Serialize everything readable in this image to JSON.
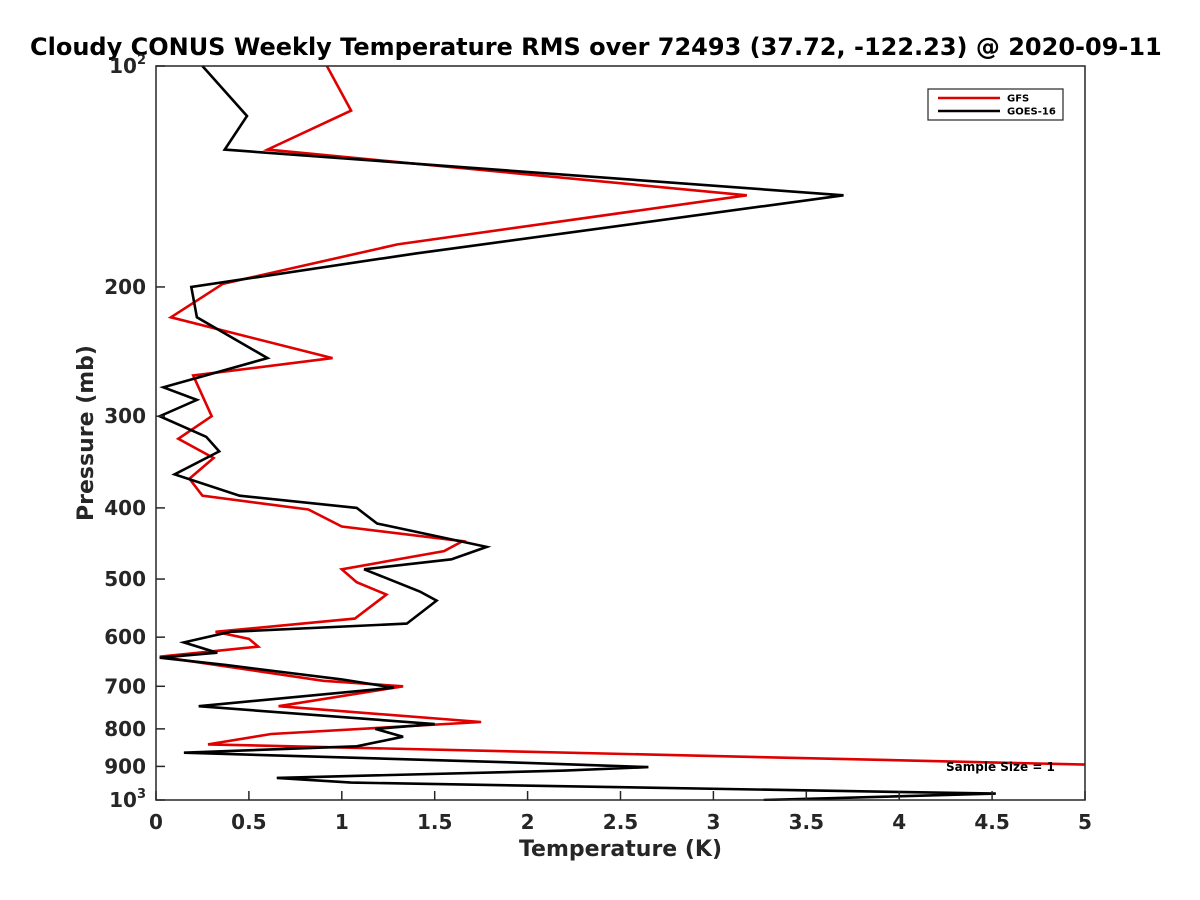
{
  "chart_data": {
    "type": "line",
    "title": "Cloudy CONUS Weekly Temperature RMS over 72493 (37.72, -122.23) @ 2020-09-11",
    "xlabel": "Temperature (K)",
    "ylabel": "Pressure (mb)",
    "xlim": [
      0,
      5
    ],
    "ylim": [
      100,
      1000
    ],
    "yscale": "log",
    "y_reversed": true,
    "grid": false,
    "legend_position": "top-right",
    "x_ticks": [
      "0",
      "0.5",
      "1",
      "1.5",
      "2",
      "2.5",
      "3",
      "3.5",
      "4",
      "4.5",
      "5"
    ],
    "y_ticks": [
      {
        "value": 100,
        "base": "10",
        "exp": "2"
      },
      {
        "value": 200,
        "label": "200"
      },
      {
        "value": 300,
        "label": "300"
      },
      {
        "value": 400,
        "label": "400"
      },
      {
        "value": 500,
        "label": "500"
      },
      {
        "value": 600,
        "label": "600"
      },
      {
        "value": 700,
        "label": "700"
      },
      {
        "value": 800,
        "label": "800"
      },
      {
        "value": 900,
        "label": "900"
      },
      {
        "value": 1000,
        "base": "10",
        "exp": "3"
      }
    ],
    "annotation": "Sample Size = 1",
    "series": [
      {
        "name": "GFS",
        "color": "#e00000",
        "points": [
          [
            0.92,
            100
          ],
          [
            1.05,
            115
          ],
          [
            0.6,
            130
          ],
          [
            3.18,
            150
          ],
          [
            1.3,
            175
          ],
          [
            0.36,
            198
          ],
          [
            0.08,
            220
          ],
          [
            0.95,
            250
          ],
          [
            0.2,
            264
          ],
          [
            0.3,
            300
          ],
          [
            0.12,
            322
          ],
          [
            0.31,
            342
          ],
          [
            0.18,
            365
          ],
          [
            0.25,
            385
          ],
          [
            0.82,
            402
          ],
          [
            1.0,
            424
          ],
          [
            1.65,
            444
          ],
          [
            1.55,
            458
          ],
          [
            1.0,
            485
          ],
          [
            1.08,
            505
          ],
          [
            1.24,
            525
          ],
          [
            1.07,
            566
          ],
          [
            0.32,
            590
          ],
          [
            0.5,
            603
          ],
          [
            0.55,
            618
          ],
          [
            0.02,
            638
          ],
          [
            0.9,
            688
          ],
          [
            1.33,
            700
          ],
          [
            0.66,
            745
          ],
          [
            1.75,
            783
          ],
          [
            0.62,
            813
          ],
          [
            0.28,
            840
          ],
          [
            5.0,
            895
          ]
        ]
      },
      {
        "name": "GOES-16",
        "color": "#000000",
        "points": [
          [
            0.25,
            100
          ],
          [
            0.49,
            117
          ],
          [
            0.37,
            130
          ],
          [
            3.7,
            150
          ],
          [
            1.4,
            180
          ],
          [
            0.19,
            200
          ],
          [
            0.22,
            220
          ],
          [
            0.6,
            250
          ],
          [
            0.04,
            274
          ],
          [
            0.22,
            285
          ],
          [
            0.02,
            300
          ],
          [
            0.27,
            320
          ],
          [
            0.34,
            335
          ],
          [
            0.1,
            360
          ],
          [
            0.45,
            385
          ],
          [
            1.08,
            400
          ],
          [
            1.19,
            420
          ],
          [
            1.78,
            452
          ],
          [
            1.59,
            470
          ],
          [
            1.12,
            485
          ],
          [
            1.42,
            520
          ],
          [
            1.51,
            535
          ],
          [
            1.35,
            575
          ],
          [
            0.4,
            590
          ],
          [
            0.15,
            610
          ],
          [
            0.33,
            630
          ],
          [
            0.02,
            640
          ],
          [
            0.38,
            655
          ],
          [
            1.0,
            685
          ],
          [
            1.28,
            703
          ],
          [
            0.23,
            745
          ],
          [
            1.5,
            788
          ],
          [
            1.18,
            800
          ],
          [
            1.33,
            820
          ],
          [
            1.08,
            845
          ],
          [
            0.15,
            862
          ],
          [
            2.0,
            890
          ],
          [
            2.65,
            902
          ],
          [
            2.2,
            912
          ],
          [
            0.65,
            933
          ],
          [
            1.05,
            947
          ],
          [
            4.52,
            980
          ],
          [
            3.27,
            1000
          ]
        ]
      }
    ]
  }
}
